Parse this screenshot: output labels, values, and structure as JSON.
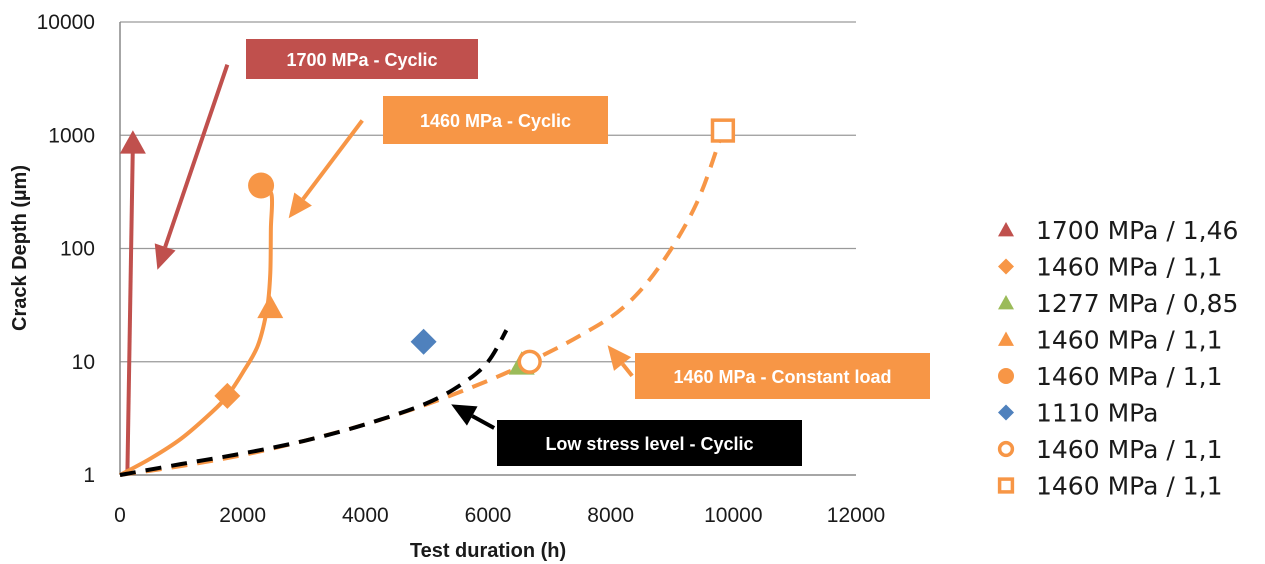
{
  "chart_data": {
    "type": "scatter",
    "title": "",
    "xlabel": "Test duration (h)",
    "ylabel": "Crack Depth (µm)",
    "xlim": [
      0,
      12000
    ],
    "ylim": [
      1,
      10000
    ],
    "y_scale": "log",
    "x_ticks": [
      "0",
      "2000",
      "4000",
      "6000",
      "8000",
      "10000",
      "12000"
    ],
    "y_ticks": [
      "1",
      "10",
      "100",
      "1000",
      "10000"
    ],
    "grid": "horizontal",
    "legend_position": "right",
    "colors": {
      "red": "#C0504D",
      "orange": "#F79646",
      "green": "#9BBB59",
      "blue": "#4F81BD",
      "black": "#000000"
    },
    "series": [
      {
        "name": "1700 MPa / 1,46",
        "marker": "triangle",
        "color": "#C0504D",
        "points": [
          [
            210,
            850
          ]
        ]
      },
      {
        "name": "1460 MPa / 1,1",
        "marker": "diamond",
        "color": "#F79646",
        "points": [
          [
            1750,
            5
          ]
        ]
      },
      {
        "name": "1277 MPa / 0,85",
        "marker": "triangle",
        "color": "#9BBB59",
        "points": [
          [
            6550,
            9.5
          ]
        ]
      },
      {
        "name": "1460 MPa / 1,1",
        "marker": "triangle",
        "color": "#F79646",
        "points": [
          [
            2450,
            30
          ]
        ]
      },
      {
        "name": "1460 MPa / 1,1",
        "marker": "circle",
        "color": "#F79646",
        "points": [
          [
            2300,
            360
          ]
        ]
      },
      {
        "name": "1110 MPa",
        "marker": "diamond",
        "color": "#4F81BD",
        "points": [
          [
            4950,
            15
          ]
        ]
      },
      {
        "name": "1460 MPa / 1,1",
        "marker": "circle-open",
        "color": "#F79646",
        "points": [
          [
            6680,
            10
          ]
        ]
      },
      {
        "name": "1460 MPa / 1,1",
        "marker": "square-open",
        "color": "#F79646",
        "points": [
          [
            9830,
            1100
          ]
        ]
      }
    ],
    "curves": [
      {
        "label": "1700 MPa - Cyclic",
        "style": "solid",
        "color": "#C0504D",
        "points": [
          [
            120,
            1
          ],
          [
            210,
            850
          ]
        ]
      },
      {
        "label": "1460 MPa - Cyclic",
        "style": "solid",
        "color": "#F79646",
        "points": [
          [
            0,
            1
          ],
          [
            500,
            1.4
          ],
          [
            1000,
            2.1
          ],
          [
            1500,
            3.6
          ],
          [
            1750,
            5
          ],
          [
            2000,
            8
          ],
          [
            2250,
            14
          ],
          [
            2400,
            30
          ],
          [
            2450,
            60
          ],
          [
            2460,
            150
          ],
          [
            2470,
            300
          ],
          [
            2300,
            360
          ]
        ]
      },
      {
        "label": "1460 MPa - Constant load",
        "style": "dashed",
        "color": "#F79646",
        "points": [
          [
            0,
            1
          ],
          [
            1000,
            1.2
          ],
          [
            2000,
            1.5
          ],
          [
            3000,
            2.0
          ],
          [
            4000,
            2.8
          ],
          [
            5000,
            4.2
          ],
          [
            6000,
            6.8
          ],
          [
            6680,
            10
          ],
          [
            7500,
            17
          ],
          [
            8200,
            30
          ],
          [
            8800,
            70
          ],
          [
            9400,
            250
          ],
          [
            9830,
            1100
          ]
        ]
      },
      {
        "label": "Low stress level - Cyclic",
        "style": "dashed",
        "color": "#000000",
        "points": [
          [
            0,
            1
          ],
          [
            1000,
            1.25
          ],
          [
            2000,
            1.55
          ],
          [
            3000,
            2.0
          ],
          [
            4000,
            2.8
          ],
          [
            5000,
            4.3
          ],
          [
            5600,
            6.5
          ],
          [
            6000,
            10
          ],
          [
            6300,
            19
          ]
        ]
      }
    ],
    "annotations": [
      {
        "text": "1700 MPa - Cyclic",
        "color": "#C0504D"
      },
      {
        "text": "1460 MPa - Cyclic",
        "color": "#F79646"
      },
      {
        "text": "1460 MPa - Constant load",
        "color": "#F79646"
      },
      {
        "text": "Low stress level - Cyclic",
        "color": "#000000"
      }
    ]
  }
}
